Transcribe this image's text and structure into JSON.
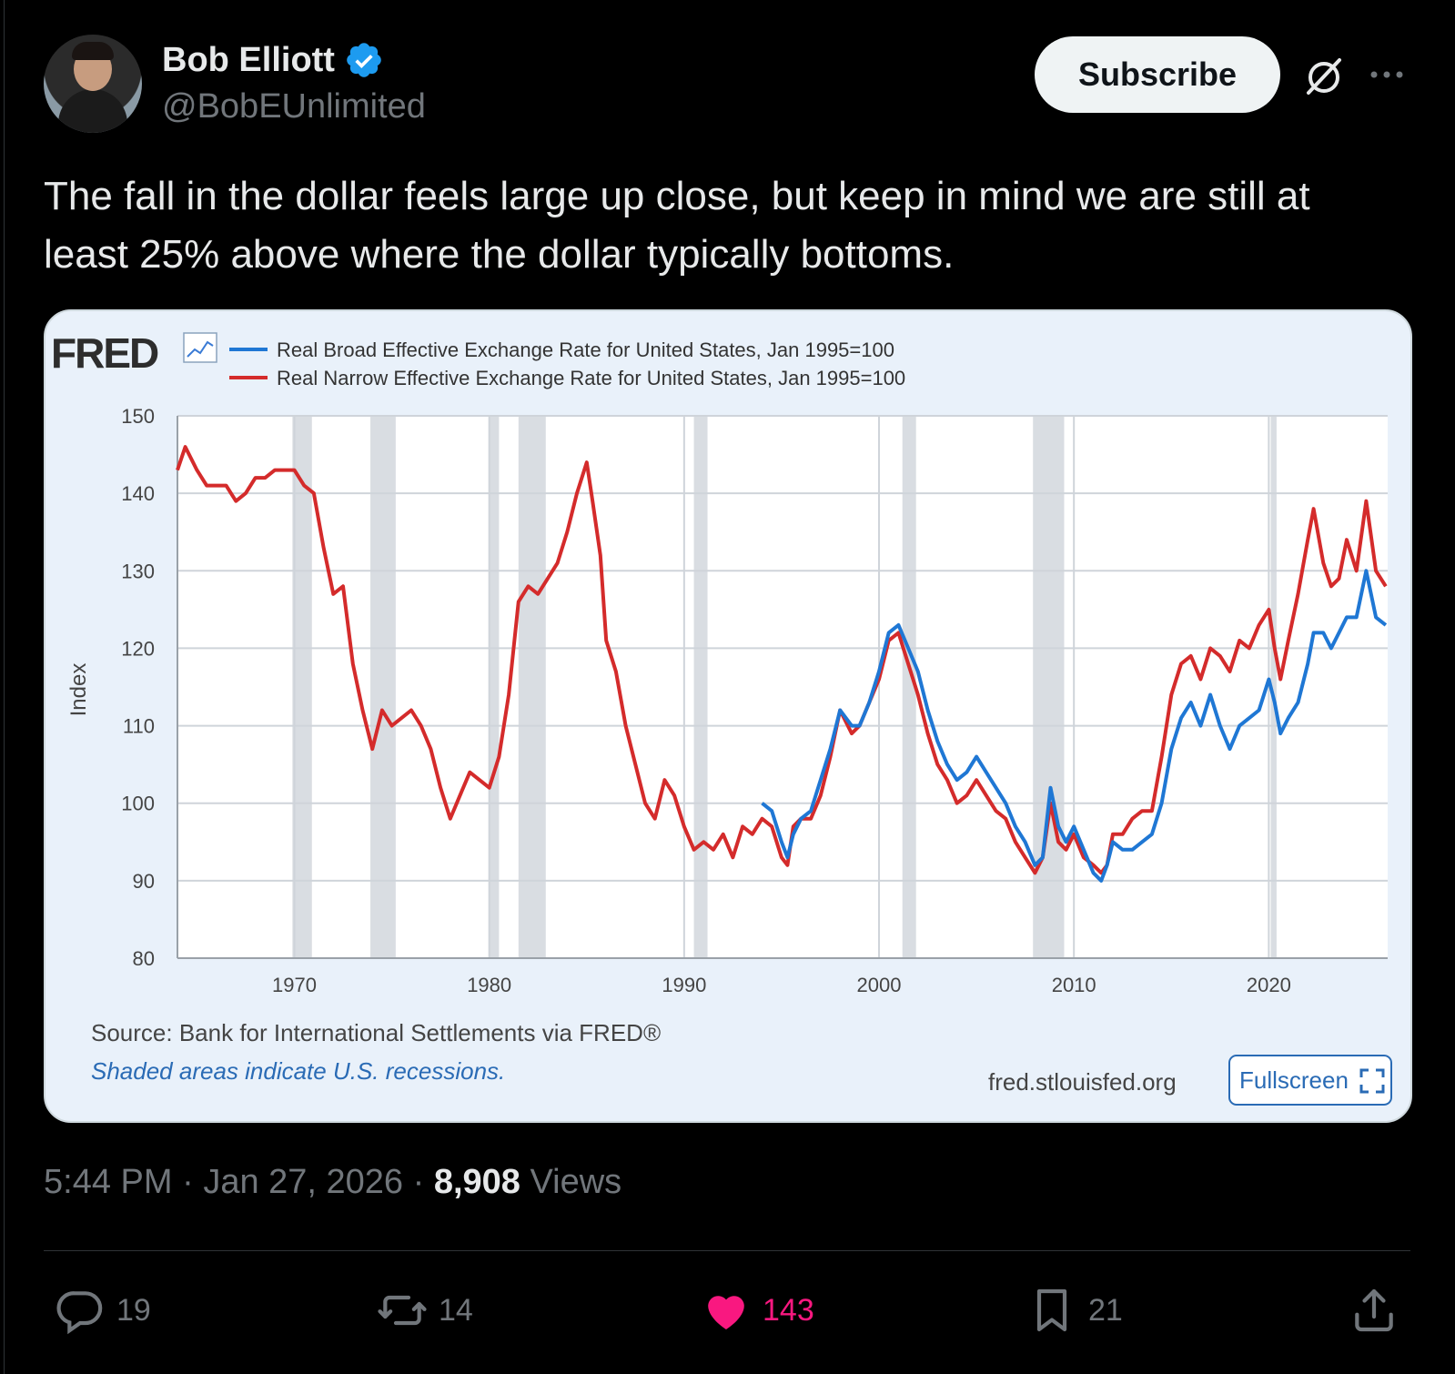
{
  "author": {
    "name": "Bob Elliott",
    "handle": "@BobEUnlimited",
    "verified": true,
    "verified_color": "#1d9bf0"
  },
  "header": {
    "subscribe_label": "Subscribe",
    "grok_icon": "grok-icon",
    "more_icon": "more-icon"
  },
  "tweet": {
    "text": "The fall in the dollar feels large up close, but keep in mind we are still at least 25% above where the dollar typically bottoms."
  },
  "card": {
    "logo": "FRED",
    "source": "Source: Bank for International Settlements via FRED®",
    "recession_note": "Shaded areas indicate U.S. recessions.",
    "site": "fred.stlouisfed.org",
    "fullscreen_label": "Fullscreen"
  },
  "chart_data": {
    "type": "line",
    "ylabel": "Index",
    "xlabel": "",
    "ylim": [
      80,
      150
    ],
    "xlim": [
      1964,
      2026.1
    ],
    "yticks": [
      150,
      140,
      130,
      120,
      110,
      100,
      90,
      80
    ],
    "xticks": [
      1970,
      1980,
      1990,
      2000,
      2010,
      2020
    ],
    "grid": true,
    "legend_position": "top-left",
    "recessions": [
      [
        1969.9,
        1970.9
      ],
      [
        1973.9,
        1975.2
      ],
      [
        1980.0,
        1980.5
      ],
      [
        1981.5,
        1982.9
      ],
      [
        1990.5,
        1991.2
      ],
      [
        2001.2,
        2001.9
      ],
      [
        2007.9,
        2009.5
      ],
      [
        2020.1,
        2020.4
      ]
    ],
    "series": [
      {
        "name": "Real Broad Effective Exchange Rate for United States, Jan 1995=100",
        "color": "#1f77d4",
        "x": [
          1994.0,
          1994.5,
          1995.0,
          1995.3,
          1995.6,
          1996.0,
          1996.5,
          1997.0,
          1997.5,
          1998.0,
          1998.6,
          1999.0,
          1999.5,
          2000.0,
          2000.5,
          2001.0,
          2001.5,
          2002.0,
          2002.5,
          2003.0,
          2003.5,
          2004.0,
          2004.5,
          2005.0,
          2005.5,
          2006.0,
          2006.5,
          2007.0,
          2007.5,
          2008.0,
          2008.4,
          2008.8,
          2009.2,
          2009.6,
          2010.0,
          2010.5,
          2011.0,
          2011.4,
          2011.7,
          2012.0,
          2012.5,
          2013.0,
          2013.5,
          2014.0,
          2014.5,
          2015.0,
          2015.5,
          2016.0,
          2016.5,
          2017.0,
          2017.5,
          2018.0,
          2018.5,
          2019.0,
          2019.5,
          2020.0,
          2020.3,
          2020.6,
          2021.0,
          2021.5,
          2022.0,
          2022.3,
          2022.8,
          2023.2,
          2023.6,
          2024.0,
          2024.5,
          2025.0,
          2025.5,
          2026.0
        ],
        "y": [
          100,
          99,
          95,
          93,
          96,
          98,
          99,
          103,
          107,
          112,
          110,
          110,
          113,
          117,
          122,
          123,
          120,
          117,
          112,
          108,
          105,
          103,
          104,
          106,
          104,
          102,
          100,
          97,
          95,
          92,
          93,
          102,
          97,
          95,
          97,
          94,
          91,
          90,
          92,
          95,
          94,
          94,
          95,
          96,
          100,
          107,
          111,
          113,
          110,
          114,
          110,
          107,
          110,
          111,
          112,
          116,
          113,
          109,
          111,
          113,
          118,
          122,
          122,
          120,
          122,
          124,
          124,
          130,
          124,
          123
        ]
      },
      {
        "name": "Real Narrow Effective Exchange Rate for United States, Jan 1995=100",
        "color": "#d42b2b",
        "x": [
          1964.0,
          1964.4,
          1965.0,
          1965.5,
          1966.0,
          1966.5,
          1967.0,
          1967.5,
          1968.0,
          1968.5,
          1969.0,
          1969.5,
          1970.0,
          1970.5,
          1971.0,
          1971.5,
          1972.0,
          1972.5,
          1973.0,
          1973.5,
          1974.0,
          1974.5,
          1975.0,
          1975.5,
          1976.0,
          1976.5,
          1977.0,
          1977.5,
          1978.0,
          1978.5,
          1979.0,
          1979.5,
          1980.0,
          1980.5,
          1981.0,
          1981.5,
          1982.0,
          1982.5,
          1983.0,
          1983.5,
          1984.0,
          1984.5,
          1985.0,
          1985.3,
          1985.7,
          1986.0,
          1986.5,
          1987.0,
          1987.5,
          1988.0,
          1988.5,
          1989.0,
          1989.5,
          1990.0,
          1990.5,
          1991.0,
          1991.5,
          1992.0,
          1992.5,
          1993.0,
          1993.5,
          1994.0,
          1994.5,
          1995.0,
          1995.3,
          1995.6,
          1996.0,
          1996.5,
          1997.0,
          1997.5,
          1998.0,
          1998.6,
          1999.0,
          1999.5,
          2000.0,
          2000.5,
          2001.0,
          2001.5,
          2002.0,
          2002.5,
          2003.0,
          2003.5,
          2004.0,
          2004.5,
          2005.0,
          2005.5,
          2006.0,
          2006.5,
          2007.0,
          2007.5,
          2008.0,
          2008.4,
          2008.8,
          2009.2,
          2009.6,
          2010.0,
          2010.5,
          2011.0,
          2011.4,
          2011.7,
          2012.0,
          2012.5,
          2013.0,
          2013.5,
          2014.0,
          2014.5,
          2015.0,
          2015.5,
          2016.0,
          2016.5,
          2017.0,
          2017.5,
          2018.0,
          2018.5,
          2019.0,
          2019.5,
          2020.0,
          2020.3,
          2020.6,
          2021.0,
          2021.5,
          2022.0,
          2022.3,
          2022.8,
          2023.2,
          2023.6,
          2024.0,
          2024.5,
          2025.0,
          2025.5,
          2026.0
        ],
        "y": [
          143,
          146,
          143,
          141,
          141,
          141,
          139,
          140,
          142,
          142,
          143,
          143,
          143,
          141,
          140,
          133,
          127,
          128,
          118,
          112,
          107,
          112,
          110,
          111,
          112,
          110,
          107,
          102,
          98,
          101,
          104,
          103,
          102,
          106,
          114,
          126,
          128,
          127,
          129,
          131,
          135,
          140,
          144,
          139,
          132,
          121,
          117,
          110,
          105,
          100,
          98,
          103,
          101,
          97,
          94,
          95,
          94,
          96,
          93,
          97,
          96,
          98,
          97,
          93,
          92,
          97,
          98,
          98,
          101,
          106,
          112,
          109,
          110,
          113,
          116,
          121,
          122,
          118,
          114,
          109,
          105,
          103,
          100,
          101,
          103,
          101,
          99,
          98,
          95,
          93,
          91,
          93,
          100,
          95,
          94,
          96,
          93,
          92,
          91,
          92,
          96,
          96,
          98,
          99,
          99,
          106,
          114,
          118,
          119,
          116,
          120,
          119,
          117,
          121,
          120,
          123,
          125,
          120,
          116,
          121,
          127,
          134,
          138,
          131,
          128,
          129,
          134,
          130,
          139,
          130,
          128
        ]
      }
    ]
  },
  "meta": {
    "time": "5:44 PM",
    "sep": "·",
    "date": "Jan 27, 2026",
    "views_count": "8,908",
    "views_label": "Views"
  },
  "actions": {
    "replies": "19",
    "reposts": "14",
    "likes": "143",
    "bookmarks": "21",
    "like_color": "#f91880"
  }
}
